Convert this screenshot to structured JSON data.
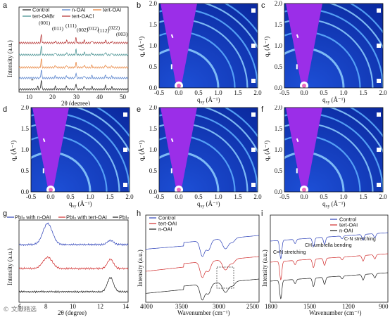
{
  "panel_letters": [
    "a",
    "b",
    "c",
    "d",
    "e",
    "f",
    "g",
    "h",
    "i"
  ],
  "panel_a": {
    "legend": [
      "Control",
      "n-OAI",
      "tert-OAI",
      "tert-OABr",
      "tert-OACl"
    ],
    "colors": [
      "#1a1a1a",
      "#4a78c8",
      "#e67a2e",
      "#3b8a8a",
      "#b22b2b"
    ],
    "peaks": [
      "(001)",
      "(011)",
      "(111)",
      "(002)",
      "(012)",
      "(112)",
      "(022)",
      "(003)"
    ],
    "star": "*",
    "xlabel": "2θ (degree)",
    "ylabel": "Intensity (a.u.)",
    "xticks": [
      "10",
      "20",
      "30",
      "40",
      "50"
    ]
  },
  "giwaxs": {
    "ylabel": "q",
    "ysub": "z",
    "yunit": "(Å⁻¹)",
    "xlabel": "q",
    "xsub": "xy",
    "xunit": "(Å⁻¹)",
    "xticks": [
      "-0.5",
      "0.0",
      "0.5",
      "1.0",
      "1.5",
      "2.0"
    ],
    "yticks": [
      "0.0",
      "0.5",
      "1.0",
      "1.5",
      "2.0"
    ]
  },
  "panel_g": {
    "legend": [
      "PbI₂ with n-OAI",
      "PbI₂ with tert-OAI",
      "PbI₂"
    ],
    "colors": [
      "#2a3fb8",
      "#d02a2a",
      "#1a1a1a"
    ],
    "xlabel": "2θ (degree)",
    "ylabel": "Intensity (a.u.)",
    "xticks": [
      "6",
      "8",
      "10",
      "12",
      "14"
    ]
  },
  "panel_h": {
    "legend": [
      "Control",
      "tert-OAI",
      "n-OAI"
    ],
    "colors": [
      "#2a3fb8",
      "#d02a2a",
      "#1a1a1a"
    ],
    "xlabel": "Wavenumber (cm⁻¹)",
    "ylabel": "Intensity (a.u.)",
    "xticks": [
      "4000",
      "3500",
      "3000",
      "2500"
    ]
  },
  "panel_i": {
    "legend": [
      "Control",
      "tert-OAI",
      "n-OAI"
    ],
    "colors": [
      "#2a3fb8",
      "#d02a2a",
      "#1a1a1a"
    ],
    "annotations": [
      "C-N stretching",
      "CH₃umbrella bending",
      "C=N stretching"
    ],
    "xlabel": "Wavenumber (cm⁻¹)",
    "ylabel": "Intensity (a.u.)",
    "xticks": [
      "1800",
      "1500",
      "1200",
      "900"
    ]
  },
  "watermark": "© 文献精选"
}
